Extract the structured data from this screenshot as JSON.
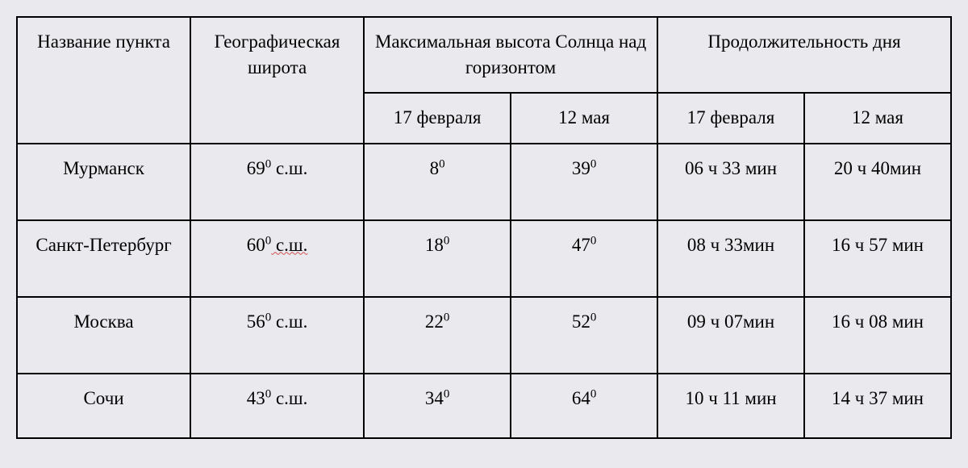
{
  "table": {
    "headers": {
      "name": "Название пункта",
      "latitude": "Географическая широта",
      "sun_height_group": "Максимальная высота Солнца над горизонтом",
      "day_length_group": "Продолжительность дня",
      "date_feb": "17 февраля",
      "date_may": "12 мая"
    },
    "rows": [
      {
        "city": "Мурманск",
        "lat_deg": "69",
        "lat_suffix": " с.ш.",
        "sun_feb": "8",
        "sun_may": "39",
        "day_feb": "06 ч 33 мин",
        "day_may": "20 ч 40мин"
      },
      {
        "city": "Санкт-Петербург",
        "lat_deg": "60",
        "lat_suffix": " с.ш.",
        "sun_feb": "18",
        "sun_may": "47",
        "day_feb": "08 ч 33мин",
        "day_may": "16 ч 57 мин"
      },
      {
        "city": "Москва",
        "lat_deg": "56",
        "lat_suffix": " с.ш.",
        "sun_feb": "22",
        "sun_may": "52",
        "day_feb": "09 ч 07мин",
        "day_may": "16 ч 08 мин"
      },
      {
        "city": "Сочи",
        "lat_deg": "43",
        "lat_suffix": " с.ш.",
        "sun_feb": "34",
        "sun_may": "64",
        "day_feb": "10 ч 11 мин",
        "day_may": "14 ч 37 мин"
      }
    ],
    "styling": {
      "background_color": "#eaeaee",
      "border_color": "#000000",
      "font_family": "Times New Roman",
      "font_size_pt": 17,
      "underline_wave_color": "#d05050",
      "degree_symbol": "0"
    }
  }
}
